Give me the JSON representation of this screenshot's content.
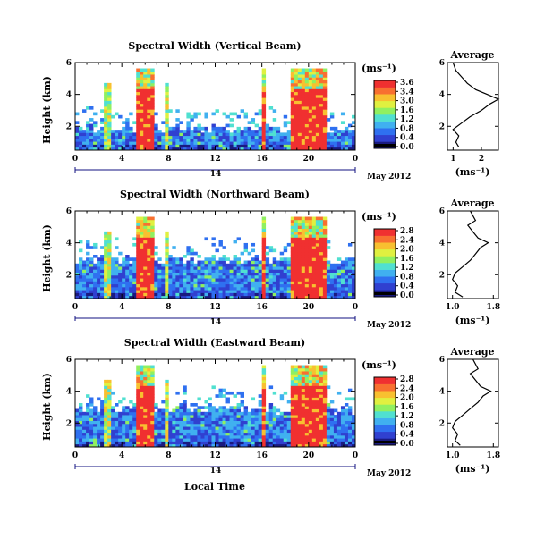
{
  "chart_data": [
    {
      "type": "heatmap",
      "title": "Spectral Width (Vertical Beam)",
      "ylabel": "Height (km)",
      "xlabel": "",
      "x_ticks": [
        "0",
        "4",
        "8",
        "12",
        "16",
        "20",
        "0"
      ],
      "xlim": [
        0,
        24
      ],
      "y_ticks": [
        "6",
        "4",
        "2"
      ],
      "ylim": [
        0.5,
        6
      ],
      "date_day": "14",
      "date_label": "May 2012",
      "colorbar": {
        "unit": "(ms⁻¹)",
        "ticks": [
          "3.6",
          "3.4",
          "3.0",
          "1.6",
          "1.2",
          "0.8",
          "0.4",
          "0.0"
        ]
      },
      "average": {
        "title": "Average",
        "xlabel": "(ms⁻¹)",
        "x_ticks": [
          "1",
          "2"
        ],
        "xlim": [
          0.8,
          2.6
        ],
        "y_ticks": [
          "6",
          "4",
          "2"
        ],
        "ylim": [
          0.5,
          6
        ],
        "profile": [
          [
            1.2,
            0.7
          ],
          [
            1.1,
            1.0
          ],
          [
            1.2,
            1.4
          ],
          [
            1.0,
            1.8
          ],
          [
            1.3,
            2.2
          ],
          [
            1.6,
            2.6
          ],
          [
            2.0,
            3.0
          ],
          [
            2.3,
            3.4
          ],
          [
            2.6,
            3.7
          ],
          [
            2.2,
            4.0
          ],
          [
            1.8,
            4.3
          ],
          [
            1.5,
            4.7
          ],
          [
            1.3,
            5.1
          ],
          [
            1.1,
            5.5
          ],
          [
            1.0,
            6.0
          ]
        ]
      }
    },
    {
      "type": "heatmap",
      "title": "Spectral Width (Northward Beam)",
      "ylabel": "Height (km)",
      "xlabel": "",
      "x_ticks": [
        "0",
        "4",
        "8",
        "12",
        "16",
        "20",
        "0"
      ],
      "xlim": [
        0,
        24
      ],
      "y_ticks": [
        "6",
        "4",
        "2"
      ],
      "ylim": [
        0.5,
        6
      ],
      "date_day": "14",
      "date_label": "May 2012",
      "colorbar": {
        "unit": "(ms⁻¹)",
        "ticks": [
          "2.8",
          "2.4",
          "2.0",
          "1.6",
          "1.2",
          "0.8",
          "0.4",
          "0.0"
        ]
      },
      "average": {
        "title": "Average",
        "xlabel": "(ms⁻¹)",
        "x_ticks": [
          "1.0",
          "1.8"
        ],
        "xlim": [
          0.9,
          1.9
        ],
        "y_ticks": [
          "6",
          "4",
          "2"
        ],
        "ylim": [
          0.5,
          6
        ],
        "profile": [
          [
            1.2,
            0.6
          ],
          [
            1.05,
            0.9
          ],
          [
            1.1,
            1.3
          ],
          [
            1.0,
            1.7
          ],
          [
            1.05,
            2.1
          ],
          [
            1.2,
            2.5
          ],
          [
            1.35,
            2.9
          ],
          [
            1.45,
            3.3
          ],
          [
            1.55,
            3.7
          ],
          [
            1.7,
            4.0
          ],
          [
            1.5,
            4.3
          ],
          [
            1.4,
            4.7
          ],
          [
            1.3,
            5.1
          ],
          [
            1.45,
            5.4
          ],
          [
            1.35,
            6.0
          ]
        ]
      }
    },
    {
      "type": "heatmap",
      "title": "Spectral Width (Eastward Beam)",
      "ylabel": "Height (km)",
      "xlabel": "Local Time",
      "x_ticks": [
        "0",
        "4",
        "8",
        "12",
        "16",
        "20",
        "0"
      ],
      "xlim": [
        0,
        24
      ],
      "y_ticks": [
        "6",
        "4",
        "2"
      ],
      "ylim": [
        0.5,
        6
      ],
      "date_day": "14",
      "date_label": "May 2012",
      "colorbar": {
        "unit": "(ms⁻¹)",
        "ticks": [
          "2.8",
          "2.4",
          "2.0",
          "1.6",
          "1.2",
          "0.8",
          "0.4",
          "0.0"
        ]
      },
      "average": {
        "title": "Average",
        "xlabel": "(ms⁻¹)",
        "x_ticks": [
          "1.0",
          "1.8"
        ],
        "xlim": [
          0.9,
          1.9
        ],
        "y_ticks": [
          "6",
          "4",
          "2"
        ],
        "ylim": [
          0.5,
          6
        ],
        "profile": [
          [
            1.15,
            0.6
          ],
          [
            1.05,
            0.9
          ],
          [
            1.1,
            1.3
          ],
          [
            1.0,
            1.7
          ],
          [
            1.05,
            2.1
          ],
          [
            1.2,
            2.5
          ],
          [
            1.35,
            2.9
          ],
          [
            1.5,
            3.3
          ],
          [
            1.6,
            3.7
          ],
          [
            1.75,
            4.0
          ],
          [
            1.55,
            4.3
          ],
          [
            1.45,
            4.7
          ],
          [
            1.35,
            5.1
          ],
          [
            1.5,
            5.4
          ],
          [
            1.4,
            6.0
          ]
        ]
      }
    }
  ],
  "colors": {
    "colorbar_low_to_high": [
      "#1a1a80",
      "#3040d0",
      "#2f70f0",
      "#40b0f0",
      "#50e0d0",
      "#90f060",
      "#e0f040",
      "#f8c030",
      "#f87030",
      "#f03030"
    ],
    "event_color": "#f03030",
    "background_blue": "#3050d8",
    "axis_line": "#000000",
    "date_bar": "#101080"
  }
}
